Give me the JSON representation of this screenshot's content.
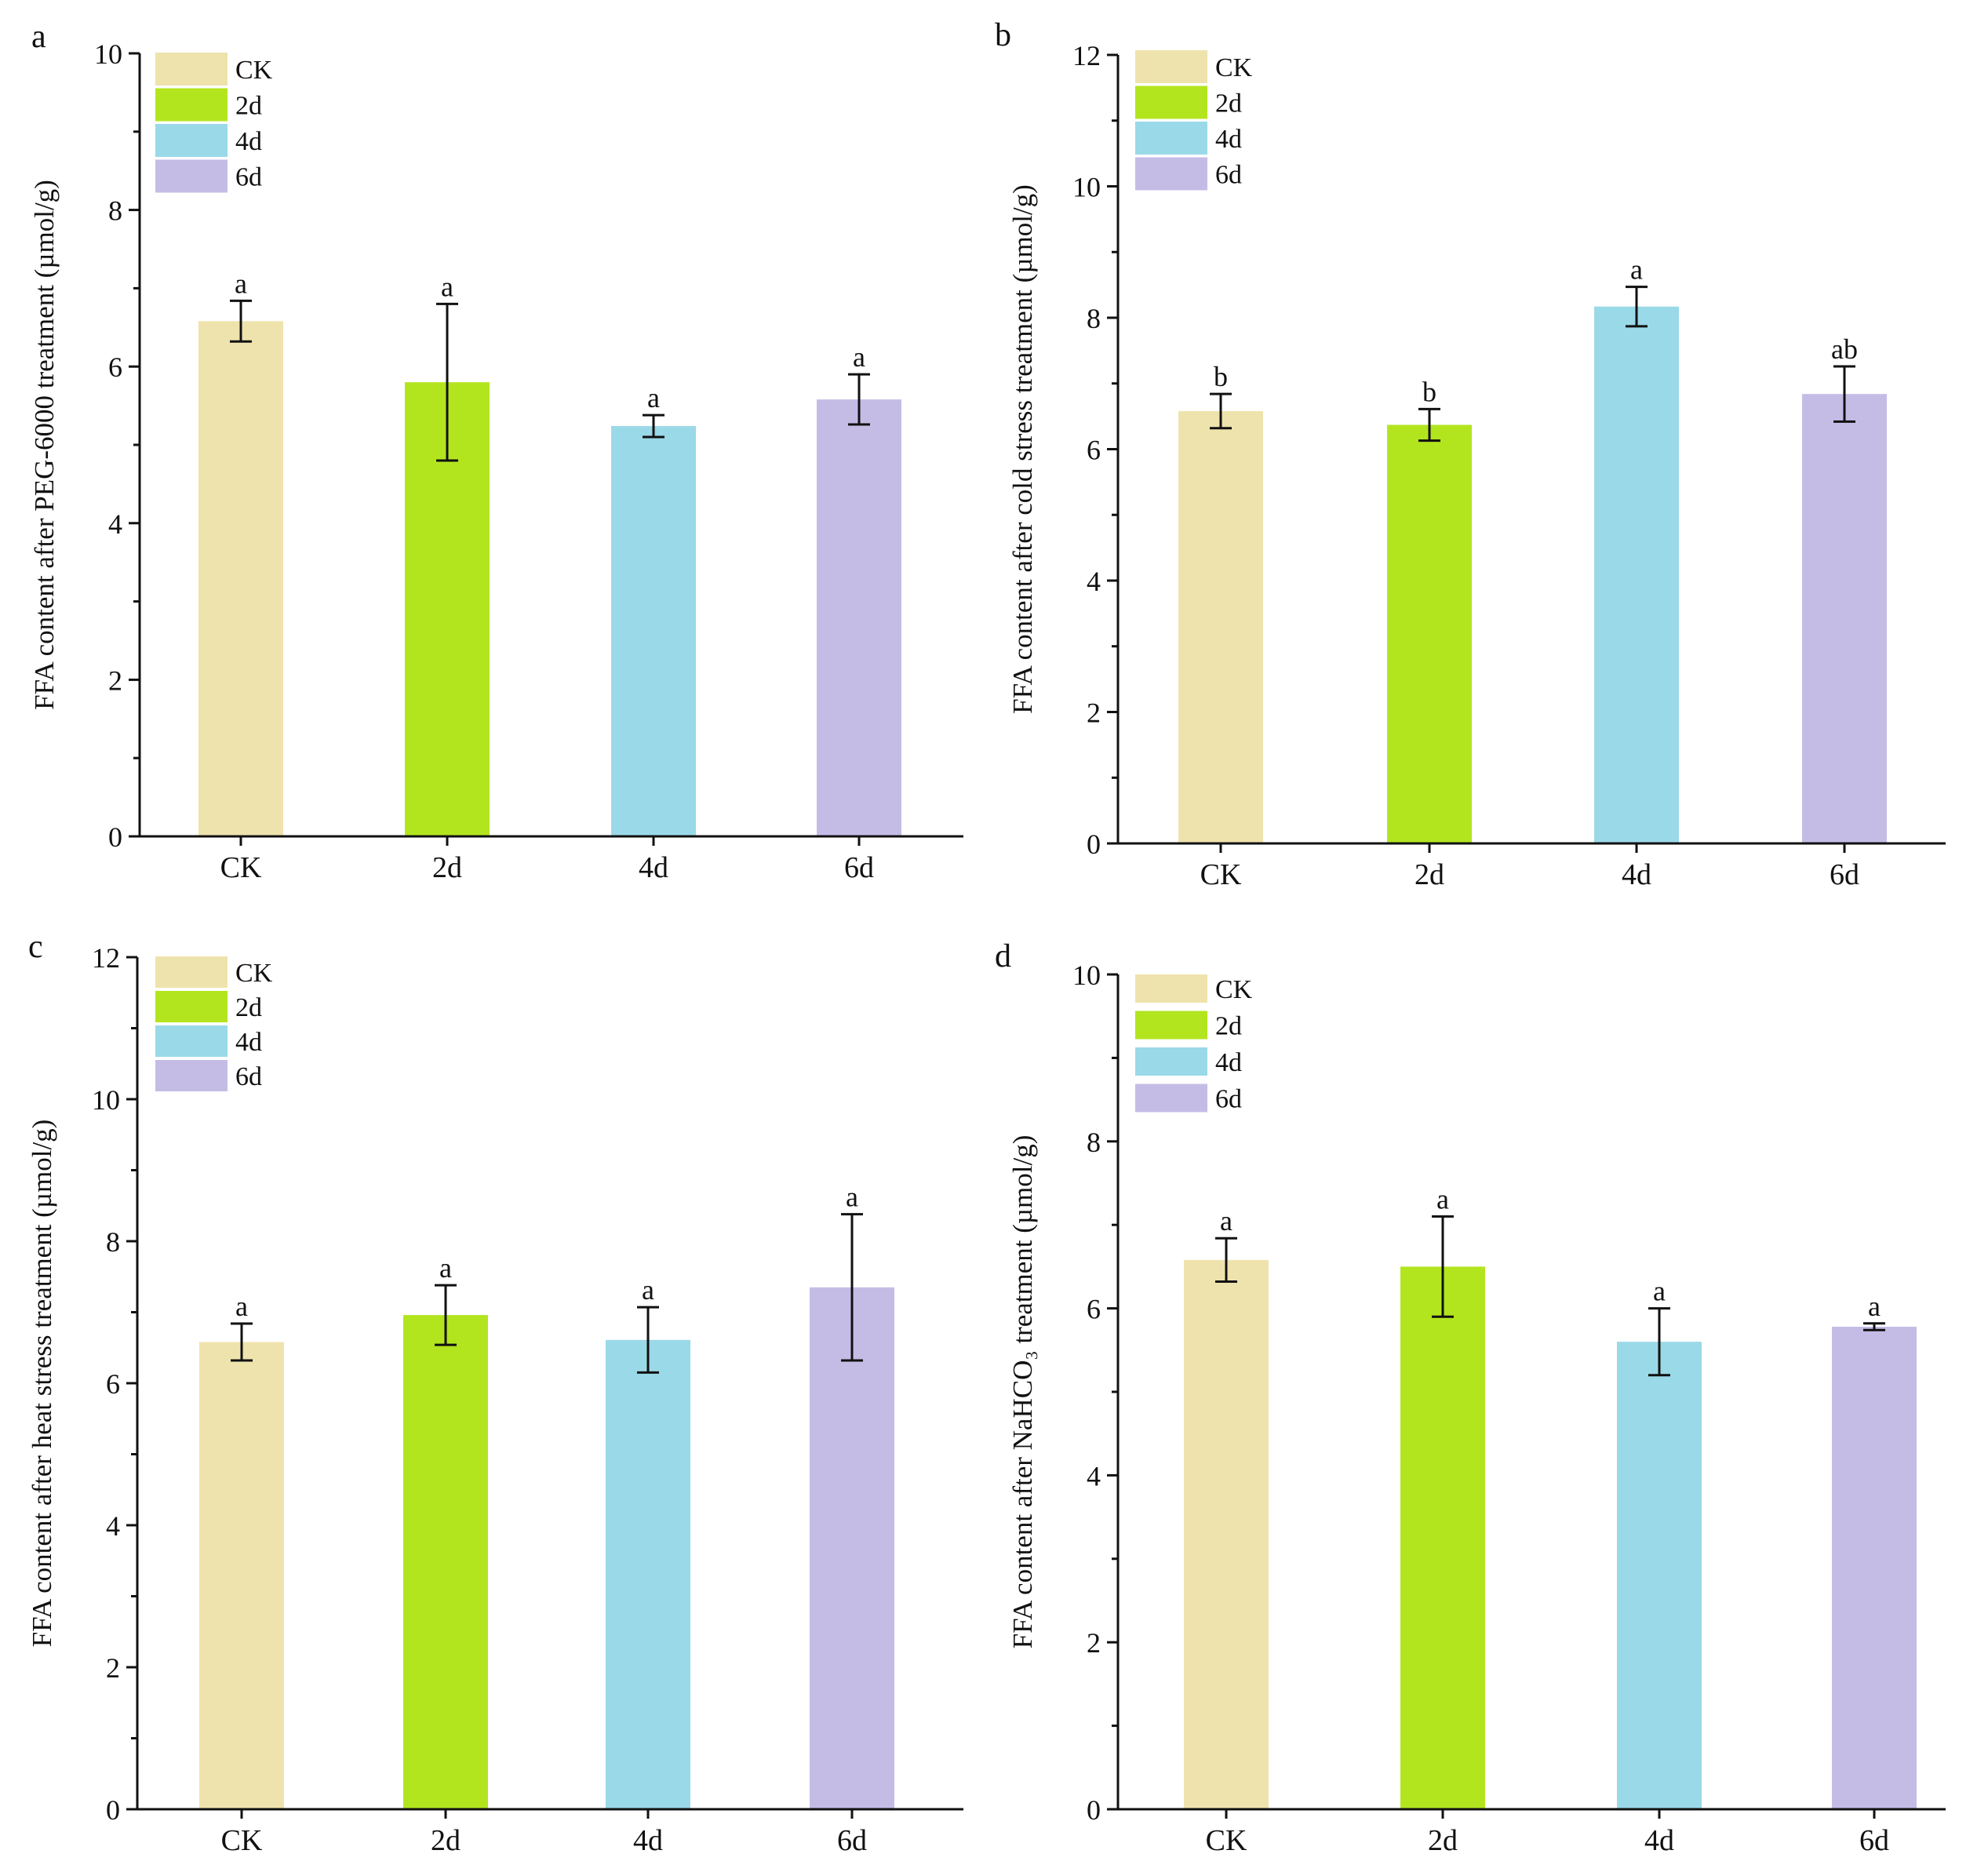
{
  "colors": {
    "CK": "#efe3ad",
    "2d": "#b3e51f",
    "4d": "#9ad9e8",
    "6d": "#c5bce6",
    "axis": "#111111",
    "text": "#111111"
  },
  "legend_entries": [
    "CK",
    "2d",
    "4d",
    "6d"
  ],
  "chart_data": [
    {
      "panel_label": "a",
      "type": "bar",
      "title": "",
      "xlabel": "",
      "ylabel": "FFA content after PEG-6000 treatment (µmol/g)",
      "legend_position": "top-left",
      "grid": false,
      "categories": [
        "CK",
        "2d",
        "4d",
        "6d"
      ],
      "values": [
        6.58,
        5.8,
        5.24,
        5.58
      ],
      "errors": [
        0.26,
        1.0,
        0.14,
        0.32
      ],
      "significance": [
        "a",
        "a",
        "a",
        "a"
      ],
      "ylim": [
        0,
        10
      ],
      "yticks": [
        0,
        2,
        4,
        6,
        8,
        10
      ]
    },
    {
      "panel_label": "b",
      "type": "bar",
      "title": "",
      "xlabel": "",
      "ylabel": "FFA content after cold stress treatment (µmol/g)",
      "legend_position": "top-left",
      "grid": false,
      "categories": [
        "CK",
        "2d",
        "4d",
        "6d"
      ],
      "values": [
        6.58,
        6.37,
        8.17,
        6.84
      ],
      "errors": [
        0.26,
        0.24,
        0.3,
        0.42
      ],
      "significance": [
        "b",
        "b",
        "a",
        "ab"
      ],
      "ylim": [
        0,
        12
      ],
      "yticks": [
        0,
        2,
        4,
        6,
        8,
        10,
        12
      ]
    },
    {
      "panel_label": "c",
      "type": "bar",
      "title": "",
      "xlabel": "",
      "ylabel": "FFA content after heat stress treatment (µmol/g)",
      "legend_position": "top-left",
      "grid": false,
      "categories": [
        "CK",
        "2d",
        "4d",
        "6d"
      ],
      "values": [
        6.58,
        6.96,
        6.61,
        7.35
      ],
      "errors": [
        0.26,
        0.42,
        0.46,
        1.03
      ],
      "significance": [
        "a",
        "a",
        "a",
        "a"
      ],
      "ylim": [
        0,
        12
      ],
      "yticks": [
        0,
        2,
        4,
        6,
        8,
        10,
        12
      ]
    },
    {
      "panel_label": "d",
      "type": "bar",
      "title": "",
      "xlabel": "",
      "ylabel": "FFA content after NaHCO₃ treatment (µmol/g)",
      "legend_position": "top-left",
      "grid": false,
      "categories": [
        "CK",
        "2d",
        "4d",
        "6d"
      ],
      "values": [
        6.58,
        6.5,
        5.6,
        5.78
      ],
      "errors": [
        0.26,
        0.6,
        0.4,
        0.04
      ],
      "significance": [
        "a",
        "a",
        "a",
        "a"
      ],
      "ylim": [
        0,
        10
      ],
      "yticks": [
        0,
        2,
        4,
        6,
        8,
        10
      ]
    }
  ]
}
